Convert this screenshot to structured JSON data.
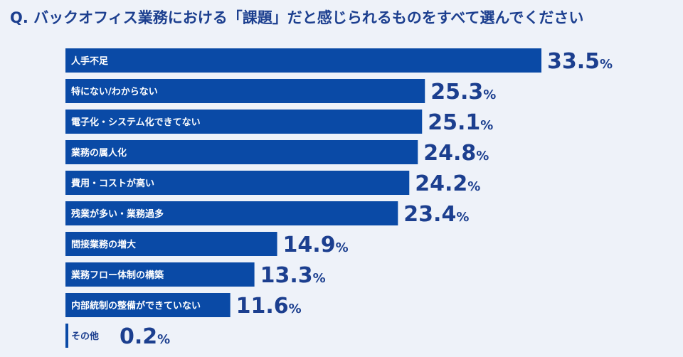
{
  "question": "Q. バックオフィス業務における「課題」だと感じられるものをすべて選んでください",
  "colors": {
    "bar": "#0a4aa6",
    "text": "#1c3f8f",
    "background": "#eef2f9"
  },
  "chart_data": {
    "type": "bar",
    "orientation": "horizontal",
    "title": "",
    "unit": "%",
    "categories": [
      "人手不足",
      "特にない/わからない",
      "電子化・システム化できてない",
      "業務の属人化",
      "費用・コストが高い",
      "残業が多い・業務過多",
      "間接業務の増大",
      "業務フロー体制の構築",
      "内部統制の整備ができていない",
      "その他"
    ],
    "values": [
      33.5,
      25.3,
      25.1,
      24.8,
      24.2,
      23.4,
      14.9,
      13.3,
      11.6,
      0.2
    ],
    "value_labels": [
      "33.5",
      "25.3",
      "25.1",
      "24.8",
      "24.2",
      "23.4",
      "14.9",
      "13.3",
      "11.6",
      "0.2"
    ],
    "xlim": [
      0,
      33.5
    ],
    "grid": false,
    "legend": "none"
  }
}
